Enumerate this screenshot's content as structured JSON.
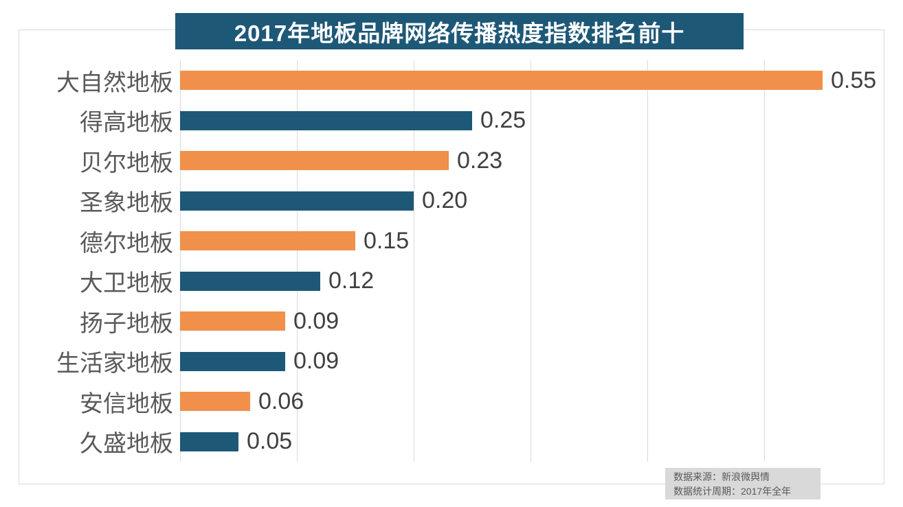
{
  "title": "2017年地板品牌网络传播热度指数排名前十",
  "footer": {
    "source": "数据来源：新浪微舆情",
    "period": "数据统计周期：2017年全年"
  },
  "colors": {
    "bar_orange": "#F0904A",
    "bar_teal": "#1E5877",
    "title_background": "#1E5877",
    "title_text": "#FFFFFF",
    "gridline": "#D9D9D9",
    "border_box": "#D9D9D9",
    "category_text": "#595959",
    "value_text": "#404040",
    "source_box_background": "#D9D9D9",
    "source_text": "#595959"
  },
  "chart_data": {
    "type": "bar",
    "orientation": "horizontal",
    "title": "2017年地板品牌网络传播热度指数排名前十",
    "categories": [
      "大自然地板",
      "得高地板",
      "贝尔地板",
      "圣象地板",
      "德尔地板",
      "大卫地板",
      "扬子地板",
      "生活家地板",
      "安信地板",
      "久盛地板"
    ],
    "values": [
      0.55,
      0.25,
      0.23,
      0.2,
      0.15,
      0.12,
      0.09,
      0.09,
      0.06,
      0.05
    ],
    "value_labels": [
      "0.55",
      "0.25",
      "0.23",
      "0.20",
      "0.15",
      "0.12",
      "0.09",
      "0.09",
      "0.06",
      "0.05"
    ],
    "bar_color_pattern": [
      "#F0904A",
      "#1E5877"
    ],
    "xlabel": "",
    "ylabel": "",
    "xlim": [
      0,
      0.6
    ],
    "grid_step": 0.1,
    "grid": true,
    "legend": null,
    "annotations": [
      "数据来源：新浪微舆情",
      "数据统计周期：2017年全年"
    ]
  }
}
